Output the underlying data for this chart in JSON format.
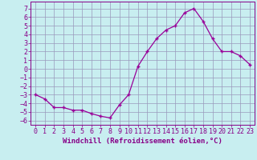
{
  "x": [
    0,
    1,
    2,
    3,
    4,
    5,
    6,
    7,
    8,
    9,
    10,
    11,
    12,
    13,
    14,
    15,
    16,
    17,
    18,
    19,
    20,
    21,
    22,
    23
  ],
  "y": [
    -3.0,
    -3.5,
    -4.5,
    -4.5,
    -4.8,
    -4.8,
    -5.2,
    -5.5,
    -5.7,
    -4.2,
    -3.0,
    0.3,
    2.0,
    3.5,
    4.5,
    5.0,
    6.5,
    7.0,
    5.5,
    3.5,
    2.0,
    2.0,
    1.5,
    0.5
  ],
  "line_color": "#990099",
  "marker": "+",
  "bg_color": "#c8eef0",
  "grid_color": "#9999bb",
  "xlabel": "Windchill (Refroidissement éolien,°C)",
  "xlim": [
    -0.5,
    23.5
  ],
  "ylim": [
    -6.5,
    7.8
  ],
  "yticks": [
    -6,
    -5,
    -4,
    -3,
    -2,
    -1,
    0,
    1,
    2,
    3,
    4,
    5,
    6,
    7
  ],
  "xticks": [
    0,
    1,
    2,
    3,
    4,
    5,
    6,
    7,
    8,
    9,
    10,
    11,
    12,
    13,
    14,
    15,
    16,
    17,
    18,
    19,
    20,
    21,
    22,
    23
  ],
  "tick_color": "#880088",
  "label_color": "#880088",
  "xlabel_fontsize": 6.5,
  "tick_fontsize": 6.0,
  "markersize": 3.5,
  "linewidth": 0.9
}
